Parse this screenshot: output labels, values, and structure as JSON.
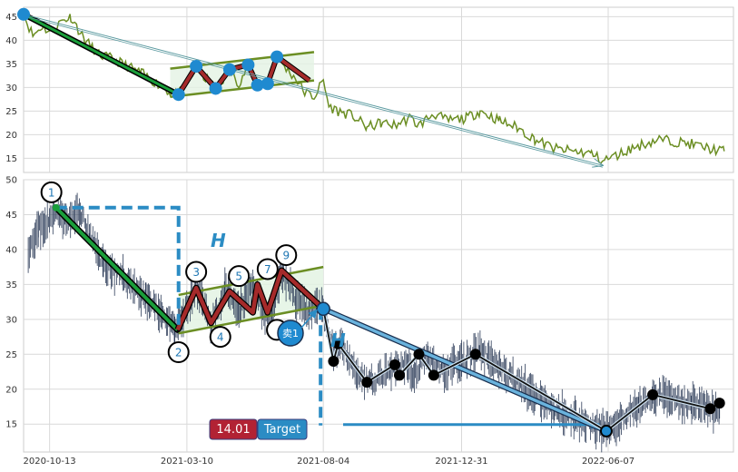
{
  "chart_data": [
    {
      "type": "line",
      "panel": "top",
      "ylim": [
        12,
        47
      ],
      "yticks": [
        15,
        20,
        25,
        30,
        35,
        40,
        45
      ],
      "x_range": [
        "2020-09-15",
        "2022-10-20"
      ],
      "grid": true,
      "colors": {
        "price": "#6b8e23",
        "trend": "#1a9e3a",
        "zigzag": "#a52a2a",
        "channel": "#6b8e23",
        "pivot": "#1f8ad0",
        "arrow": "#5b9aa0"
      },
      "price_anchors": [
        [
          "2020-09-15",
          45.5
        ],
        [
          "2020-09-25",
          41
        ],
        [
          "2020-10-05",
          43
        ],
        [
          "2020-10-15",
          41.5
        ],
        [
          "2020-10-25",
          44
        ],
        [
          "2020-11-05",
          45
        ],
        [
          "2020-11-20",
          40
        ],
        [
          "2020-12-05",
          37
        ],
        [
          "2020-12-20",
          36
        ],
        [
          "2021-01-05",
          34.5
        ],
        [
          "2021-01-20",
          33
        ],
        [
          "2021-02-05",
          31
        ],
        [
          "2021-02-20",
          29
        ],
        [
          "2021-03-01",
          28.5
        ],
        [
          "2021-03-10",
          31
        ],
        [
          "2021-03-20",
          34
        ],
        [
          "2021-03-30",
          32
        ],
        [
          "2021-04-10",
          29.8
        ],
        [
          "2021-04-25",
          33.5
        ],
        [
          "2021-05-05",
          31
        ],
        [
          "2021-05-15",
          34.5
        ],
        [
          "2021-05-25",
          31
        ],
        [
          "2021-06-05",
          30.5
        ],
        [
          "2021-06-15",
          36.5
        ],
        [
          "2021-06-25",
          34
        ],
        [
          "2021-07-05",
          32
        ],
        [
          "2021-07-15",
          29
        ],
        [
          "2021-07-25",
          28
        ],
        [
          "2021-08-04",
          31.5
        ],
        [
          "2021-08-10",
          26
        ],
        [
          "2021-08-20",
          25
        ],
        [
          "2021-09-05",
          24
        ],
        [
          "2021-09-20",
          21.5
        ],
        [
          "2021-10-05",
          22.5
        ],
        [
          "2021-10-20",
          22
        ],
        [
          "2021-11-05",
          23.5
        ],
        [
          "2021-11-15",
          22
        ],
        [
          "2021-12-01",
          24.5
        ],
        [
          "2021-12-15",
          23
        ],
        [
          "2022-01-05",
          23.5
        ],
        [
          "2022-01-20",
          25
        ],
        [
          "2022-02-10",
          23
        ],
        [
          "2022-03-01",
          21.5
        ],
        [
          "2022-03-20",
          19
        ],
        [
          "2022-04-10",
          17
        ],
        [
          "2022-05-01",
          16.5
        ],
        [
          "2022-05-20",
          16
        ],
        [
          "2022-06-01",
          14.5
        ],
        [
          "2022-06-15",
          15.5
        ],
        [
          "2022-07-01",
          17
        ],
        [
          "2022-07-15",
          18
        ],
        [
          "2022-08-01",
          19
        ],
        [
          "2022-08-20",
          18.5
        ],
        [
          "2022-09-05",
          18
        ],
        [
          "2022-09-25",
          17
        ],
        [
          "2022-10-10",
          16.5
        ]
      ],
      "trend_line": [
        [
          "2020-09-15",
          45.5
        ],
        [
          "2021-03-01",
          28.5
        ]
      ],
      "zigzag": [
        [
          "2021-03-01",
          28.5
        ],
        [
          "2021-03-20",
          34.5
        ],
        [
          "2021-04-10",
          29.8
        ],
        [
          "2021-04-25",
          33.8
        ],
        [
          "2021-05-15",
          34.8
        ],
        [
          "2021-05-25",
          30.5
        ],
        [
          "2021-06-05",
          30.8
        ],
        [
          "2021-06-15",
          36.5
        ],
        [
          "2021-07-20",
          31.5
        ]
      ],
      "channel_upper": [
        [
          "2021-02-20",
          34
        ],
        [
          "2021-07-25",
          37.5
        ]
      ],
      "channel_lower": [
        [
          "2021-02-20",
          28
        ],
        [
          "2021-07-25",
          31.5
        ]
      ],
      "pivots": [
        [
          "2020-09-15",
          45.5
        ],
        [
          "2021-03-01",
          28.5
        ],
        [
          "2021-03-20",
          34.5
        ],
        [
          "2021-04-10",
          29.8
        ],
        [
          "2021-04-25",
          33.8
        ],
        [
          "2021-05-15",
          34.8
        ],
        [
          "2021-05-25",
          30.5
        ],
        [
          "2021-06-05",
          30.8
        ],
        [
          "2021-06-15",
          36.5
        ]
      ],
      "arrow": [
        [
          "2020-09-15",
          45.5
        ],
        [
          "2022-06-01",
          13.5
        ]
      ]
    },
    {
      "type": "line",
      "panel": "bottom",
      "ylim": [
        11,
        50
      ],
      "yticks": [
        15,
        20,
        25,
        30,
        35,
        40,
        45,
        50
      ],
      "x_range": [
        "2020-09-15",
        "2022-10-20"
      ],
      "xticks": [
        "2020-10-13",
        "2021-03-10",
        "2021-08-04",
        "2021-12-31",
        "2022-06-07"
      ],
      "grid": true,
      "colors": {
        "price": "#2f3e5a",
        "trend": "#1a9e3a",
        "zigzag": "#a52a2a",
        "channel": "#6b8e23",
        "dashed": "#2b8cc4",
        "forecast": "#2b8cc4",
        "badge_red": "#b22234",
        "badge_blue": "#2b8cc4"
      },
      "price_anchors": [
        [
          "2020-09-20",
          40
        ],
        [
          "2020-10-01",
          43
        ],
        [
          "2020-10-13",
          44
        ],
        [
          "2020-10-20",
          46
        ],
        [
          "2020-11-01",
          44
        ],
        [
          "2020-11-15",
          45.5
        ],
        [
          "2020-11-25",
          42
        ],
        [
          "2020-12-10",
          38
        ],
        [
          "2020-12-25",
          36.5
        ],
        [
          "2021-01-10",
          35
        ],
        [
          "2021-01-25",
          33
        ],
        [
          "2021-02-10",
          31
        ],
        [
          "2021-02-25",
          28.5
        ],
        [
          "2021-03-05",
          30
        ],
        [
          "2021-03-20",
          34.5
        ],
        [
          "2021-04-05",
          29.5
        ],
        [
          "2021-04-20",
          34
        ],
        [
          "2021-05-05",
          31
        ],
        [
          "2021-05-20",
          35
        ],
        [
          "2021-06-01",
          31
        ],
        [
          "2021-06-10",
          30.5
        ],
        [
          "2021-06-20",
          37
        ],
        [
          "2021-07-05",
          33
        ],
        [
          "2021-07-20",
          31
        ],
        [
          "2021-08-04",
          31.5
        ],
        [
          "2021-08-15",
          25
        ],
        [
          "2021-08-25",
          26.5
        ],
        [
          "2021-09-10",
          22
        ],
        [
          "2021-09-25",
          21
        ],
        [
          "2021-10-15",
          22.5
        ],
        [
          "2021-11-01",
          23.5
        ],
        [
          "2021-11-10",
          22
        ],
        [
          "2021-11-25",
          25
        ],
        [
          "2021-12-10",
          22.5
        ],
        [
          "2021-12-31",
          24
        ],
        [
          "2022-01-20",
          25.5
        ],
        [
          "2022-02-10",
          23
        ],
        [
          "2022-03-01",
          21
        ],
        [
          "2022-03-20",
          19
        ],
        [
          "2022-04-10",
          17
        ],
        [
          "2022-05-01",
          16
        ],
        [
          "2022-05-25",
          14.5
        ],
        [
          "2022-06-05",
          14
        ],
        [
          "2022-06-20",
          15.5
        ],
        [
          "2022-07-10",
          17.5
        ],
        [
          "2022-07-25",
          19.2
        ],
        [
          "2022-08-15",
          18.5
        ],
        [
          "2022-09-05",
          18
        ],
        [
          "2022-09-20",
          17.5
        ],
        [
          "2022-10-05",
          16.5
        ]
      ],
      "trend_line": [
        [
          "2020-10-20",
          46
        ],
        [
          "2021-02-28",
          28.5
        ]
      ],
      "zigzag": [
        [
          "2021-02-28",
          28.5
        ],
        [
          "2021-03-20",
          34.5
        ],
        [
          "2021-04-05",
          29.5
        ],
        [
          "2021-04-25",
          34
        ],
        [
          "2021-05-20",
          31
        ],
        [
          "2021-05-25",
          35
        ],
        [
          "2021-06-05",
          31
        ],
        [
          "2021-06-20",
          37
        ],
        [
          "2021-08-04",
          31.5
        ]
      ],
      "channel_upper": [
        [
          "2021-03-01",
          33.5
        ],
        [
          "2021-08-04",
          37.5
        ]
      ],
      "channel_lower": [
        [
          "2021-03-01",
          28
        ],
        [
          "2021-08-04",
          32
        ]
      ],
      "height_marker": {
        "top": 46,
        "bottom": 28.5,
        "left_date": "2020-10-20",
        "right_date": "2021-03-01"
      },
      "breakout_drop": {
        "date": "2021-08-04",
        "top": 31.5,
        "bottom": 14.8
      },
      "forecast_line": [
        [
          "2021-08-04",
          31.5
        ],
        [
          "2022-06-05",
          14
        ]
      ],
      "actual_path": [
        [
          "2021-08-04",
          31.5
        ],
        [
          "2021-08-15",
          24
        ],
        [
          "2021-08-20",
          26.5
        ],
        [
          "2021-09-20",
          21
        ],
        [
          "2021-10-20",
          23.5
        ],
        [
          "2021-10-25",
          22
        ],
        [
          "2021-11-15",
          25
        ],
        [
          "2021-12-01",
          22
        ],
        [
          "2022-01-15",
          25
        ],
        [
          "2022-06-05",
          14
        ],
        [
          "2022-07-25",
          19.2
        ],
        [
          "2022-09-25",
          17.2
        ],
        [
          "2022-10-05",
          18
        ]
      ],
      "pivot_labels": [
        {
          "label": "1",
          "date": "2020-10-15",
          "value": 48.2
        },
        {
          "label": "2",
          "date": "2021-03-01",
          "value": 25.3
        },
        {
          "label": "3",
          "date": "2021-03-20",
          "value": 36.8
        },
        {
          "label": "4",
          "date": "2021-04-15",
          "value": 27.5
        },
        {
          "label": "5",
          "date": "2021-05-05",
          "value": 36.2
        },
        {
          "label": "7",
          "date": "2021-06-05",
          "value": 37.2
        },
        {
          "label": "9",
          "date": "2021-06-25",
          "value": 39.2
        },
        {
          "label": "",
          "date": "2021-06-15",
          "value": 28.5
        }
      ],
      "annotations": {
        "h_left": "H",
        "h_right": "H",
        "sell_label": "卖1",
        "target_value": "14.01",
        "target_label": "Target"
      }
    }
  ]
}
